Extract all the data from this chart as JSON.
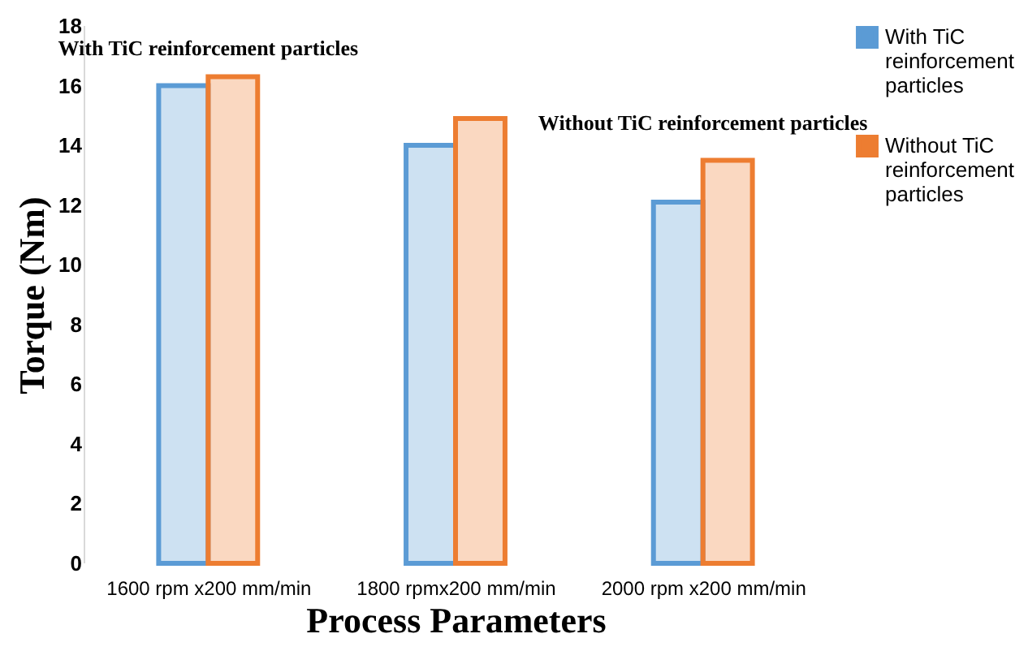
{
  "chart_data": {
    "type": "bar",
    "xlabel": "Process Parameters",
    "ylabel": "Torque (Nm)",
    "categories": [
      "1600 rpm x200 mm/min",
      "1800 rpmx200 mm/min",
      "2000 rpm x200 mm/min"
    ],
    "series": [
      {
        "name": "With TiC reinforcement particles",
        "color": "#5b9bd5",
        "values": [
          16.0,
          14.0,
          12.1
        ]
      },
      {
        "name": "Without TiC reinforcement particles",
        "color": "#ed7d31",
        "values": [
          16.3,
          14.9,
          13.5
        ]
      }
    ],
    "ylim": [
      0,
      18
    ],
    "yticks": [
      0,
      2,
      4,
      6,
      8,
      10,
      12,
      14,
      16,
      18
    ],
    "grid": false,
    "legend": "right",
    "annotations": [
      {
        "text": "With TiC reinforcement particles",
        "x": "1600 rpm x200 mm/min",
        "y": 16.0
      },
      {
        "text": "Without TiC reinforcement particles",
        "x": "2000 rpm x200 mm/min",
        "y": 13.5
      }
    ]
  }
}
